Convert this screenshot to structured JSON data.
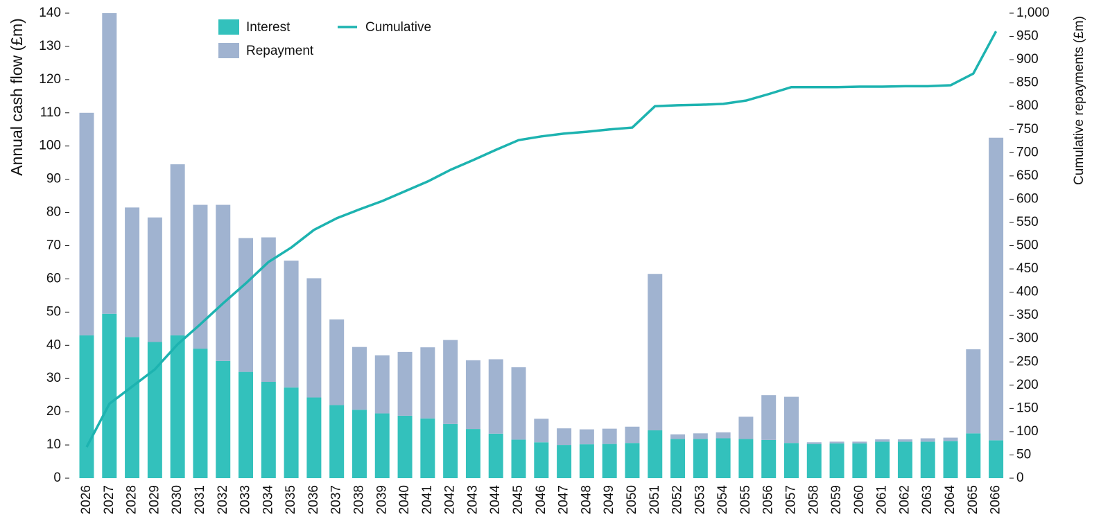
{
  "chart_data": {
    "type": "bar",
    "stacked": true,
    "grid": false,
    "ylabel": "Annual cash flow (£m)",
    "y2label": "Cumulative repayments (£m)",
    "categories": [
      "2026",
      "2027",
      "2028",
      "2029",
      "2030",
      "2031",
      "2032",
      "2033",
      "2034",
      "2035",
      "2036",
      "2037",
      "2038",
      "2039",
      "2040",
      "2041",
      "2042",
      "2043",
      "2044",
      "2045",
      "2046",
      "2047",
      "2048",
      "2049",
      "2050",
      "2051",
      "2052",
      "2053",
      "2054",
      "2055",
      "2056",
      "2057",
      "2058",
      "2059",
      "2060",
      "2061",
      "2062",
      "2063",
      "2064",
      "2065",
      "2066"
    ],
    "series": [
      {
        "name": "Interest",
        "type": "bar",
        "color": "#33c1bc",
        "values": [
          43,
          49.5,
          42.5,
          41,
          43,
          39,
          35.3,
          32,
          29,
          27.3,
          24.3,
          22,
          20.6,
          19.5,
          18.8,
          18,
          16.3,
          14.8,
          13.4,
          11.6,
          10.8,
          10,
          10.2,
          10.3,
          10.6,
          14.4,
          11.8,
          11.8,
          12,
          11.8,
          11.5,
          10.6,
          10.3,
          10.5,
          10.5,
          11,
          11,
          11,
          11.2,
          13.5,
          11.4
        ]
      },
      {
        "name": "Repayment",
        "type": "bar",
        "color": "#a0b3d0",
        "values": [
          67,
          90.5,
          39,
          37.5,
          51.5,
          43.3,
          47,
          40.3,
          43.5,
          38.2,
          35.9,
          25.8,
          18.9,
          17.5,
          19.2,
          21.4,
          25.3,
          20.7,
          22.4,
          21.8,
          7.1,
          5,
          4.5,
          4.6,
          4.9,
          47.1,
          1.4,
          1.7,
          1.8,
          6.7,
          13.5,
          13.9,
          0.5,
          0.5,
          0.5,
          0.7,
          0.7,
          1,
          1,
          25.3,
          91.1
        ]
      },
      {
        "name": "Cumulative",
        "type": "line",
        "axis": "y2",
        "color": "#1db3b0",
        "values": [
          67,
          160,
          197,
          234,
          288,
          331,
          376,
          419,
          465,
          496,
          534,
          559,
          578,
          596,
          617,
          638,
          663,
          684,
          706,
          727,
          735,
          741,
          745,
          750,
          754,
          800,
          802,
          803,
          805,
          812,
          826,
          841,
          841,
          841,
          842,
          842,
          843,
          843,
          845,
          870,
          961
        ]
      }
    ],
    "ylim": [
      0,
      140
    ],
    "yticks": [
      0,
      10,
      20,
      30,
      40,
      50,
      60,
      70,
      80,
      90,
      100,
      110,
      120,
      130,
      140
    ],
    "y2lim": [
      0,
      1000
    ],
    "y2ticks": [
      0,
      50,
      100,
      150,
      200,
      250,
      300,
      350,
      400,
      450,
      500,
      550,
      600,
      650,
      700,
      750,
      800,
      850,
      900,
      950,
      {
        "value": 1000,
        "label": "1,000"
      }
    ]
  }
}
